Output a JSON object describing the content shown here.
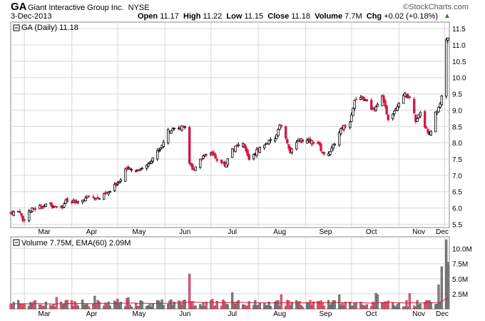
{
  "header": {
    "symbol": "GA",
    "company": "Giant Interactive Group Inc.",
    "exchange": "NYSE",
    "date": "3-Dec-2013",
    "open_label": "Open",
    "open": "11.17",
    "high_label": "High",
    "high": "11.22",
    "low_label": "Low",
    "low": "11.15",
    "close_label": "Close",
    "close": "11.18",
    "volume_label": "Volume",
    "volume": "7.7M",
    "chg_label": "Chg",
    "chg": "+0.02 (+0.18%)",
    "credit": "©StockCharts.com"
  },
  "price_legend": "GA (Daily) 11.18",
  "volume_legend": "Volume 7.75M, EMA(60) 2.09M",
  "colors": {
    "up": "#000000",
    "down": "#d11a45",
    "grid": "#d8d8d8",
    "ema": "#d11a45",
    "vol_up": "#808080",
    "vol_down": "#e0607a"
  },
  "chart_data": [
    {
      "type": "candlestick",
      "title": "GA (Daily) 11.18",
      "x_tick_labels": [
        "Mar",
        "Apr",
        "May",
        "Jun",
        "Jul",
        "Aug",
        "Sep",
        "Oct",
        "Nov",
        "Dec"
      ],
      "y_ticks": [
        5.5,
        6.0,
        6.5,
        7.0,
        7.5,
        8.0,
        8.5,
        9.0,
        9.5,
        10.0,
        10.5,
        11.0,
        11.5
      ],
      "y_tick_labels": [
        "5.5",
        "6.0",
        "6.5",
        "7.0",
        "7.5",
        "8.0",
        "8.5",
        "9.0",
        "9.5",
        "10.0",
        "10.5",
        "11.0",
        "11.5"
      ],
      "ylim": [
        5.4,
        11.7
      ],
      "grid": true,
      "close_path": [
        [
          "2013-02-20",
          5.85
        ],
        [
          "2013-02-26",
          5.9
        ],
        [
          "2013-02-28",
          5.6
        ],
        [
          "2013-03-04",
          5.9
        ],
        [
          "2013-03-11",
          6.05
        ],
        [
          "2013-03-18",
          6.1
        ],
        [
          "2013-03-25",
          6.05
        ],
        [
          "2013-03-28",
          6.2
        ],
        [
          "2013-04-05",
          6.15
        ],
        [
          "2013-04-12",
          6.35
        ],
        [
          "2013-04-19",
          6.3
        ],
        [
          "2013-04-26",
          6.5
        ],
        [
          "2013-05-03",
          6.9
        ],
        [
          "2013-05-06",
          7.2
        ],
        [
          "2013-05-13",
          7.15
        ],
        [
          "2013-05-20",
          7.3
        ],
        [
          "2013-05-24",
          7.55
        ],
        [
          "2013-05-29",
          7.85
        ],
        [
          "2013-06-03",
          8.35
        ],
        [
          "2013-06-07",
          8.5
        ],
        [
          "2013-06-10",
          8.4
        ],
        [
          "2013-06-14",
          8.55
        ],
        [
          "2013-06-17",
          7.4
        ],
        [
          "2013-06-19",
          7.15
        ],
        [
          "2013-06-24",
          7.5
        ],
        [
          "2013-07-01",
          7.7
        ],
        [
          "2013-07-05",
          7.5
        ],
        [
          "2013-07-10",
          7.3
        ],
        [
          "2013-07-15",
          7.8
        ],
        [
          "2013-07-22",
          7.95
        ],
        [
          "2013-07-26",
          7.5
        ],
        [
          "2013-08-01",
          7.8
        ],
        [
          "2013-08-07",
          8.0
        ],
        [
          "2013-08-12",
          8.1
        ],
        [
          "2013-08-15",
          8.6
        ],
        [
          "2013-08-19",
          8.1
        ],
        [
          "2013-08-22",
          7.7
        ],
        [
          "2013-08-28",
          8.1
        ],
        [
          "2013-09-03",
          8.05
        ],
        [
          "2013-09-09",
          8.0
        ],
        [
          "2013-09-13",
          7.6
        ],
        [
          "2013-09-18",
          7.8
        ],
        [
          "2013-09-24",
          8.4
        ],
        [
          "2013-09-30",
          8.7
        ],
        [
          "2013-10-03",
          9.3
        ],
        [
          "2013-10-09",
          9.35
        ],
        [
          "2013-10-15",
          9.0
        ],
        [
          "2013-10-21",
          9.4
        ],
        [
          "2013-10-25",
          8.75
        ],
        [
          "2013-10-29",
          9.0
        ],
        [
          "2013-11-04",
          9.5
        ],
        [
          "2013-11-08",
          9.35
        ],
        [
          "2013-11-12",
          8.7
        ],
        [
          "2013-11-15",
          8.95
        ],
        [
          "2013-11-19",
          8.4
        ],
        [
          "2013-11-22",
          8.3
        ],
        [
          "2013-11-25",
          8.9
        ],
        [
          "2013-11-27",
          9.1
        ],
        [
          "2013-11-29",
          9.4
        ],
        [
          "2013-12-02",
          11.16
        ],
        [
          "2013-12-03",
          11.18
        ]
      ]
    },
    {
      "type": "bar",
      "title": "Volume 7.75M, EMA(60) 2.09M",
      "y_ticks": [
        2500000,
        5000000,
        7500000,
        10000000
      ],
      "y_tick_labels": [
        "2.5M",
        "5.0M",
        "7.5M",
        "10.0M"
      ],
      "ylim": [
        0,
        11500000
      ],
      "ema_value": 2090000,
      "last_volume": 7750000,
      "spike_volumes": [
        [
          "2013-06-17",
          5800000
        ],
        [
          "2013-11-27",
          4000000
        ],
        [
          "2013-11-29",
          7000000
        ],
        [
          "2013-12-02",
          11500000
        ],
        [
          "2013-12-03",
          7750000
        ]
      ]
    }
  ]
}
